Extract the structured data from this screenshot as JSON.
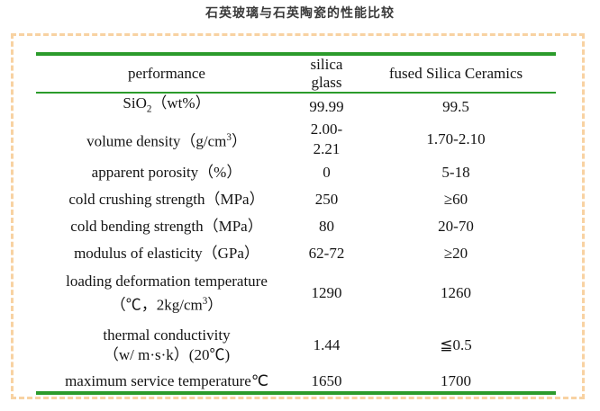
{
  "title": "石英玻璃与石英陶瓷的性能比较",
  "colors": {
    "line_green": "#2b9b2b",
    "border_peach": "#f8d2a2",
    "title_text": "#3a3a3a",
    "body_text": "#141414"
  },
  "table": {
    "headers": [
      "performance",
      "silica glass",
      "fused Silica Ceramics"
    ],
    "rows": [
      {
        "label": [
          {
            "t": "SiO"
          },
          {
            "t": "2",
            "s": "sub"
          },
          {
            "t": "（wt%）"
          }
        ],
        "silica_glass": "99.99",
        "fused_silica_ceramics": "99.5"
      },
      {
        "label": [
          {
            "t": "volume density（g/cm"
          },
          {
            "t": "3",
            "s": "sup"
          },
          {
            "t": "）"
          }
        ],
        "silica_glass": "2.00-2.21",
        "fused_silica_ceramics": "1.70-2.10"
      },
      {
        "label": [
          {
            "t": "apparent porosity（%）"
          }
        ],
        "silica_glass": "0",
        "fused_silica_ceramics": "5-18"
      },
      {
        "label": [
          {
            "t": "cold crushing strength（MPa）"
          }
        ],
        "silica_glass": "250",
        "fused_silica_ceramics": "≥60"
      },
      {
        "label": [
          {
            "t": "cold bending strength（MPa）"
          }
        ],
        "silica_glass": "80",
        "fused_silica_ceramics": "20-70"
      },
      {
        "label": [
          {
            "t": "modulus of elasticity（GPa）"
          }
        ],
        "silica_glass": "62-72",
        "fused_silica_ceramics": "≥20"
      },
      {
        "label": [
          {
            "t": "loading deformation temperature"
          },
          {
            "s": "br"
          },
          {
            "t": "（℃，2kg/cm"
          },
          {
            "t": "3",
            "s": "sup"
          },
          {
            "t": "）"
          }
        ],
        "silica_glass": "1290",
        "fused_silica_ceramics": "1260"
      },
      {
        "label": [
          {
            "t": "thermal conductivity"
          },
          {
            "s": "br"
          },
          {
            "t": "（w/ m·s·k）(20℃)"
          }
        ],
        "silica_glass": "1.44",
        "fused_silica_ceramics": "≦0.5"
      },
      {
        "label": [
          {
            "t": "maximum service temperature℃"
          }
        ],
        "silica_glass": "1650",
        "fused_silica_ceramics": "1700"
      }
    ]
  }
}
